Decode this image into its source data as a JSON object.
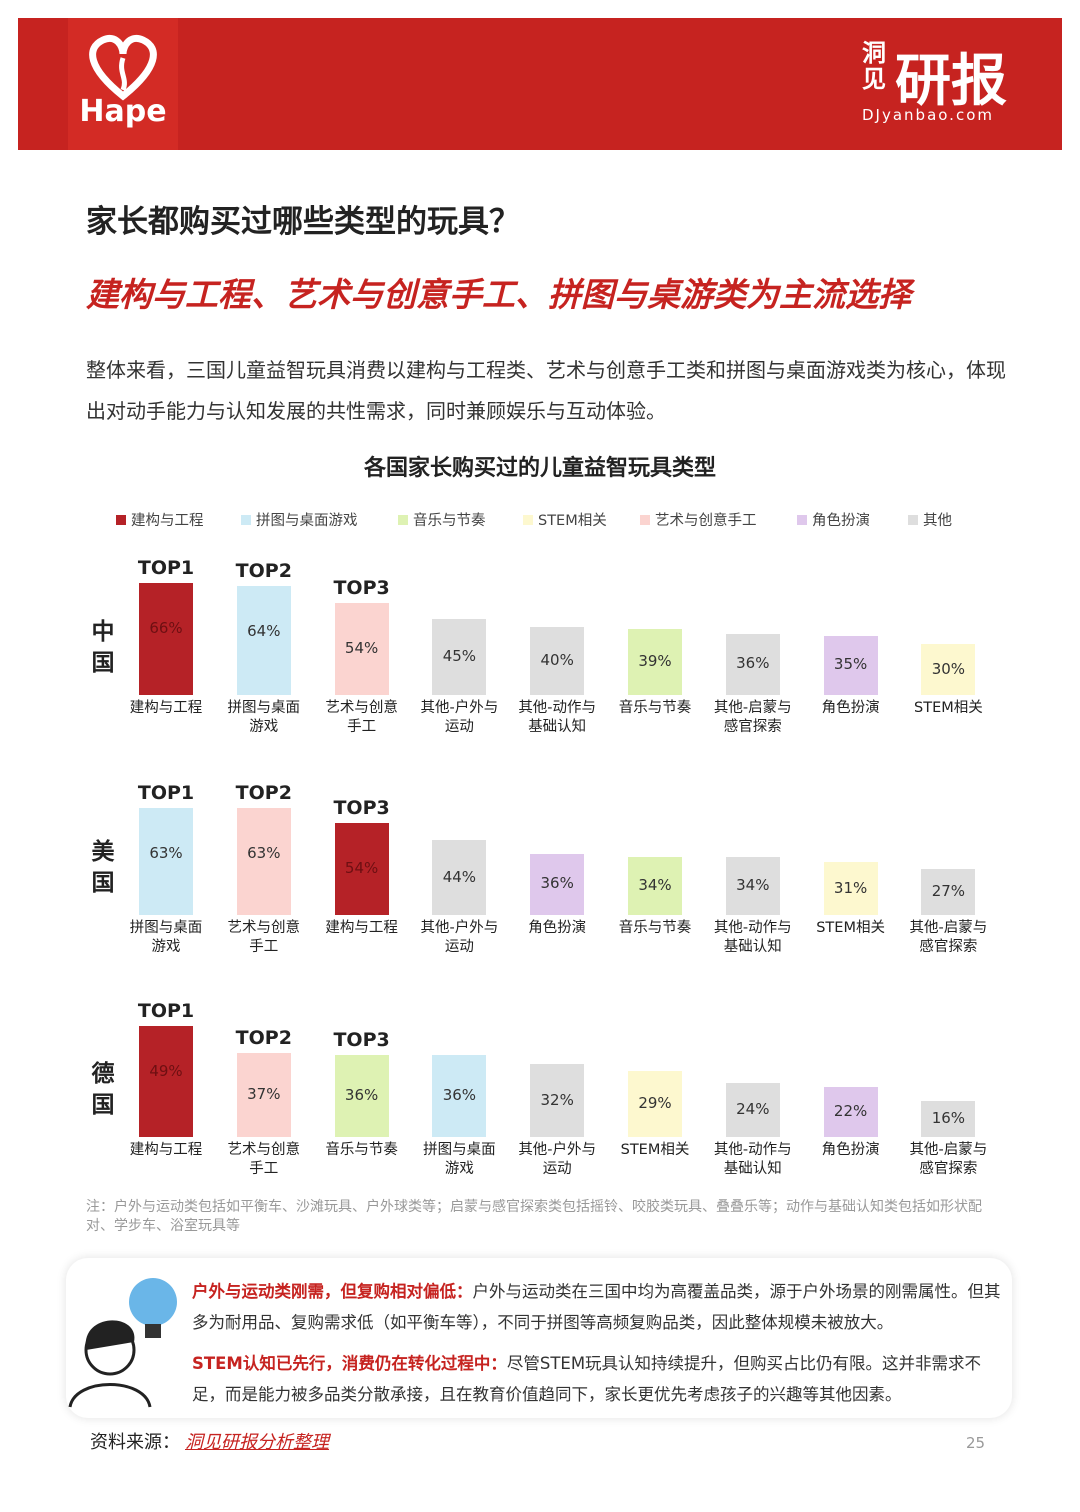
{
  "header": {
    "logo": "Hape",
    "brand_small": "洞见",
    "brand": "研报",
    "site": "DJyanbao.com"
  },
  "title": "家长都购买过哪些类型的玩具？",
  "subtitle": "建构与工程、艺术与创意手工、拼图与桌游类为主流选择",
  "intro": "整体来看，三国儿童益智玩具消费以建构与工程类、艺术与创意手工类和拼图与桌面游戏类为核心，体现出对动手能力与认知发展的共性需求，同时兼顾娱乐与互动体验。",
  "chart_title": "各国家长购买过的儿童益智玩具类型",
  "legend": [
    {
      "name": "建构与工程",
      "color": "#b52227"
    },
    {
      "name": "拼图与桌面游戏",
      "color": "#cdeaf5"
    },
    {
      "name": "音乐与节奏",
      "color": "#def2b3"
    },
    {
      "name": "STEM相关",
      "color": "#fdf8cf"
    },
    {
      "name": "艺术与创意手工",
      "color": "#fbd4d0"
    },
    {
      "name": "角色扮演",
      "color": "#dfc8ec"
    },
    {
      "name": "其他",
      "color": "#dedede"
    }
  ],
  "chart_data": [
    {
      "type": "bar",
      "label": "中国",
      "ylim": [
        0,
        100
      ],
      "annotations": [
        "TOP1",
        "TOP2",
        "TOP3"
      ],
      "categories": [
        "建构与工程",
        "拼图与桌面\n游戏",
        "艺术与创意\n手工",
        "其他-户外与\n运动",
        "其他-动作与\n基础认知",
        "音乐与节奏",
        "其他-启蒙与\n感官探索",
        "角色扮演",
        "STEM相关"
      ],
      "values": [
        66,
        64,
        54,
        45,
        40,
        39,
        36,
        35,
        30
      ],
      "value_labels": [
        "66%",
        "64%",
        "54%",
        "45%",
        "40%",
        "39%",
        "36%",
        "35%",
        "30%"
      ],
      "colors": [
        "#b52227",
        "#cdeaf5",
        "#fbd4d0",
        "#dedede",
        "#dedede",
        "#def2b3",
        "#dedede",
        "#dfc8ec",
        "#fdf8cf"
      ]
    },
    {
      "type": "bar",
      "label": "美国",
      "ylim": [
        0,
        100
      ],
      "annotations": [
        "TOP1",
        "TOP2",
        "TOP3"
      ],
      "categories": [
        "拼图与桌面\n游戏",
        "艺术与创意\n手工",
        "建构与工程",
        "其他-户外与\n运动",
        "角色扮演",
        "音乐与节奏",
        "其他-动作与\n基础认知",
        "STEM相关",
        "其他-启蒙与\n感官探索"
      ],
      "values": [
        63,
        63,
        54,
        44,
        36,
        34,
        34,
        31,
        27
      ],
      "value_labels": [
        "63%",
        "63%",
        "54%",
        "44%",
        "36%",
        "34%",
        "34%",
        "31%",
        "27%"
      ],
      "colors": [
        "#cdeaf5",
        "#fbd4d0",
        "#b52227",
        "#dedede",
        "#dfc8ec",
        "#def2b3",
        "#dedede",
        "#fdf8cf",
        "#dedede"
      ]
    },
    {
      "type": "bar",
      "label": "德国",
      "ylim": [
        0,
        75
      ],
      "annotations": [
        "TOP1",
        "TOP2",
        "TOP3"
      ],
      "categories": [
        "建构与工程",
        "艺术与创意\n手工",
        "音乐与节奏",
        "拼图与桌面\n游戏",
        "其他-户外与\n运动",
        "STEM相关",
        "其他-动作与\n基础认知",
        "角色扮演",
        "其他-启蒙与\n感官探索"
      ],
      "values": [
        49,
        37,
        36,
        36,
        32,
        29,
        24,
        22,
        16
      ],
      "value_labels": [
        "49%",
        "37%",
        "36%",
        "36%",
        "32%",
        "29%",
        "24%",
        "22%",
        "16%"
      ],
      "colors": [
        "#b52227",
        "#fbd4d0",
        "#def2b3",
        "#cdeaf5",
        "#dedede",
        "#fdf8cf",
        "#dedede",
        "#dfc8ec",
        "#dedede"
      ]
    }
  ],
  "note": "注：户外与运动类包括如平衡车、沙滩玩具、户外球类等；启蒙与感官探索类包括摇铃、咬胶类玩具、叠叠乐等；动作与基础认知类包括如形状配对、学步车、浴室玩具等",
  "callout": [
    {
      "lead": "户外与运动类刚需，但复购相对偏低：",
      "text": "户外与运动类在三国中均为高覆盖品类，源于户外场景的刚需属性。但其多为耐用品、复购需求低（如平衡车等），不同于拼图等高频复购品类，因此整体规模未被放大。"
    },
    {
      "lead": "STEM认知已先行，消费仍在转化过程中：",
      "text": "尽管STEM玩具认知持续提升，但购买占比仍有限。这并非需求不足，而是能力被多品类分散承接，且在教育价值趋同下，家长更优先考虑孩子的兴趣等其他因素。"
    }
  ],
  "source_label": "资料来源：",
  "source": "洞见研报分析整理",
  "page": "25"
}
